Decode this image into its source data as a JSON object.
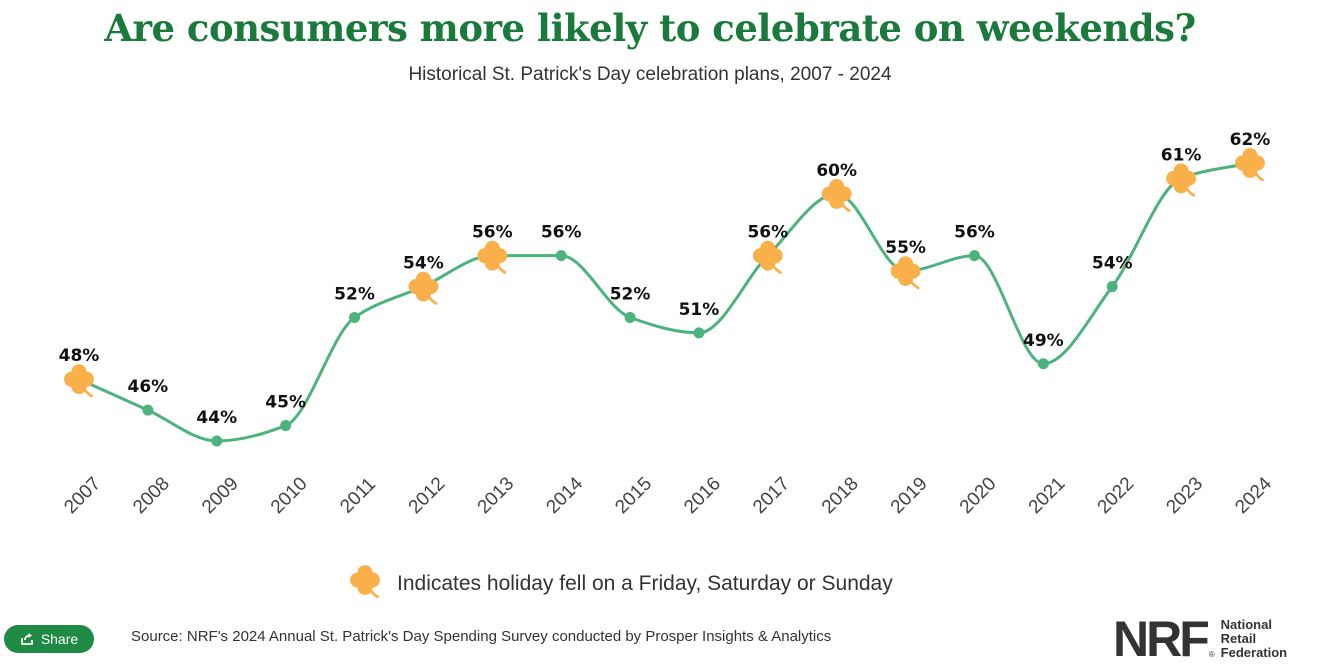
{
  "chart_data": {
    "type": "line",
    "title": "Are consumers more likely to celebrate on weekends?",
    "subtitle": "Historical St. Patrick's Day celebration plans, 2007 - 2024",
    "categories": [
      "2007",
      "2008",
      "2009",
      "2010",
      "2011",
      "2012",
      "2013",
      "2014",
      "2015",
      "2016",
      "2017",
      "2018",
      "2019",
      "2020",
      "2021",
      "2022",
      "2023",
      "2024"
    ],
    "values": [
      48,
      46,
      44,
      45,
      52,
      54,
      56,
      56,
      52,
      51,
      56,
      60,
      55,
      56,
      49,
      54,
      61,
      62
    ],
    "value_labels": [
      "48%",
      "46%",
      "44%",
      "45%",
      "52%",
      "54%",
      "56%",
      "56%",
      "52%",
      "51%",
      "56%",
      "60%",
      "55%",
      "56%",
      "49%",
      "54%",
      "61%",
      "62%"
    ],
    "weekend": [
      true,
      false,
      false,
      false,
      false,
      true,
      true,
      false,
      false,
      false,
      true,
      true,
      true,
      false,
      false,
      false,
      true,
      true
    ],
    "ylim": [
      42,
      63
    ],
    "grid": false,
    "colors": {
      "line": "#4db37e",
      "shamrock": "#f9b04a",
      "title": "#1a7a3c"
    }
  },
  "legend": {
    "text": "Indicates holiday fell on a Friday, Saturday or Sunday",
    "icon": "shamrock-icon"
  },
  "share_button": {
    "label": "Share",
    "icon": "share-icon"
  },
  "source": "Source: NRF's 2024 Annual St. Patrick's Day Spending Survey conducted by Prosper Insights & Analytics",
  "logo": {
    "mark": "NRF",
    "reg": "®",
    "lines": [
      "National",
      "Retail",
      "Federation"
    ]
  }
}
